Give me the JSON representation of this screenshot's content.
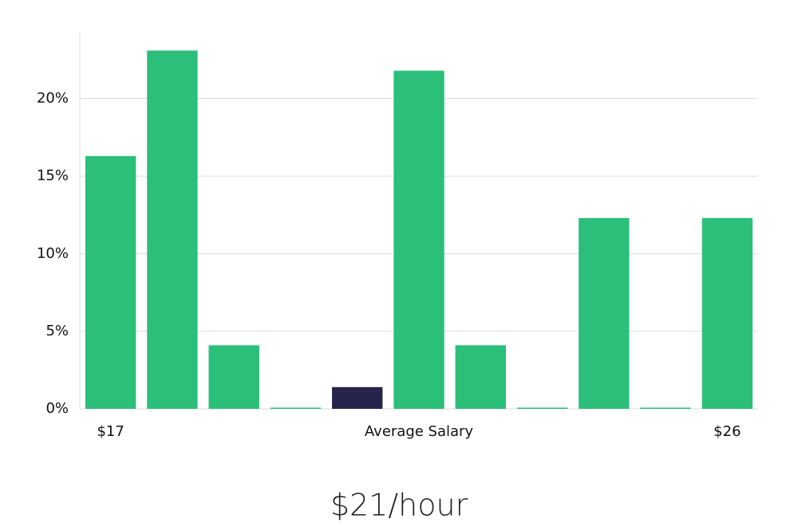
{
  "chart_data": {
    "type": "bar",
    "categories": [
      "$17",
      null,
      null,
      null,
      null,
      "Average Salary",
      null,
      null,
      null,
      null,
      "$26"
    ],
    "values": [
      16.3,
      23.1,
      4.1,
      0,
      1.4,
      21.8,
      4.1,
      0,
      12.3,
      0,
      12.3
    ],
    "colors": [
      "#2bbf79",
      "#2bbf79",
      "#2bbf79",
      "#2bbf79",
      "#26244a",
      "#2bbf79",
      "#2bbf79",
      "#2bbf79",
      "#2bbf79",
      "#2bbf79",
      "#2bbf79"
    ],
    "ylim": [
      0,
      24.3
    ],
    "yticks": [
      {
        "value": 0,
        "label": "0%"
      },
      {
        "value": 5,
        "label": "5%"
      },
      {
        "value": 10,
        "label": "10%"
      },
      {
        "value": 15,
        "label": "15%"
      },
      {
        "value": 20,
        "label": "20%"
      }
    ],
    "grid": true,
    "footer": "$21/hour"
  }
}
